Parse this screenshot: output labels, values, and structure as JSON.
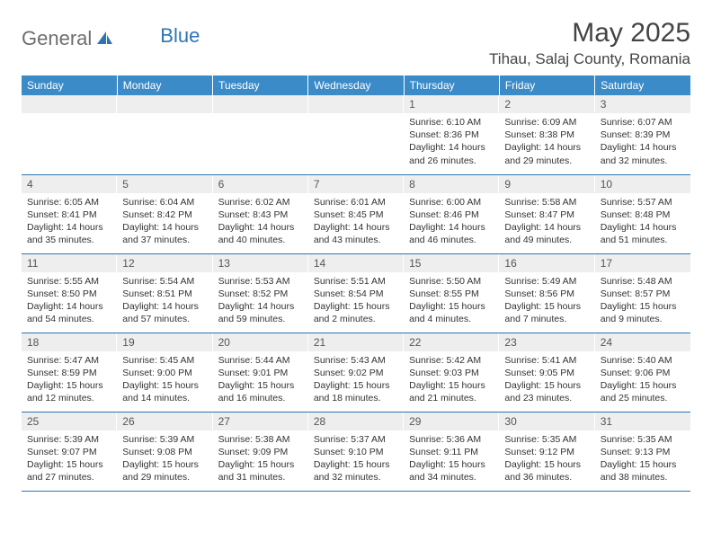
{
  "logo": {
    "general": "General",
    "blue": "Blue"
  },
  "title": "May 2025",
  "location": "Tihau, Salaj County, Romania",
  "colors": {
    "header_bg": "#3b8bc9",
    "header_text": "#ffffff",
    "band_bg": "#eeeeee",
    "rule": "#2e74b5",
    "logo_gray": "#6e6e6e",
    "logo_blue": "#2e74b5",
    "body_text": "#333333"
  },
  "weekdays": [
    "Sunday",
    "Monday",
    "Tuesday",
    "Wednesday",
    "Thursday",
    "Friday",
    "Saturday"
  ],
  "weeks": [
    [
      {
        "day": "",
        "sunrise": "",
        "sunset": "",
        "daylight": ""
      },
      {
        "day": "",
        "sunrise": "",
        "sunset": "",
        "daylight": ""
      },
      {
        "day": "",
        "sunrise": "",
        "sunset": "",
        "daylight": ""
      },
      {
        "day": "",
        "sunrise": "",
        "sunset": "",
        "daylight": ""
      },
      {
        "day": "1",
        "sunrise": "Sunrise: 6:10 AM",
        "sunset": "Sunset: 8:36 PM",
        "daylight": "Daylight: 14 hours and 26 minutes."
      },
      {
        "day": "2",
        "sunrise": "Sunrise: 6:09 AM",
        "sunset": "Sunset: 8:38 PM",
        "daylight": "Daylight: 14 hours and 29 minutes."
      },
      {
        "day": "3",
        "sunrise": "Sunrise: 6:07 AM",
        "sunset": "Sunset: 8:39 PM",
        "daylight": "Daylight: 14 hours and 32 minutes."
      }
    ],
    [
      {
        "day": "4",
        "sunrise": "Sunrise: 6:05 AM",
        "sunset": "Sunset: 8:41 PM",
        "daylight": "Daylight: 14 hours and 35 minutes."
      },
      {
        "day": "5",
        "sunrise": "Sunrise: 6:04 AM",
        "sunset": "Sunset: 8:42 PM",
        "daylight": "Daylight: 14 hours and 37 minutes."
      },
      {
        "day": "6",
        "sunrise": "Sunrise: 6:02 AM",
        "sunset": "Sunset: 8:43 PM",
        "daylight": "Daylight: 14 hours and 40 minutes."
      },
      {
        "day": "7",
        "sunrise": "Sunrise: 6:01 AM",
        "sunset": "Sunset: 8:45 PM",
        "daylight": "Daylight: 14 hours and 43 minutes."
      },
      {
        "day": "8",
        "sunrise": "Sunrise: 6:00 AM",
        "sunset": "Sunset: 8:46 PM",
        "daylight": "Daylight: 14 hours and 46 minutes."
      },
      {
        "day": "9",
        "sunrise": "Sunrise: 5:58 AM",
        "sunset": "Sunset: 8:47 PM",
        "daylight": "Daylight: 14 hours and 49 minutes."
      },
      {
        "day": "10",
        "sunrise": "Sunrise: 5:57 AM",
        "sunset": "Sunset: 8:48 PM",
        "daylight": "Daylight: 14 hours and 51 minutes."
      }
    ],
    [
      {
        "day": "11",
        "sunrise": "Sunrise: 5:55 AM",
        "sunset": "Sunset: 8:50 PM",
        "daylight": "Daylight: 14 hours and 54 minutes."
      },
      {
        "day": "12",
        "sunrise": "Sunrise: 5:54 AM",
        "sunset": "Sunset: 8:51 PM",
        "daylight": "Daylight: 14 hours and 57 minutes."
      },
      {
        "day": "13",
        "sunrise": "Sunrise: 5:53 AM",
        "sunset": "Sunset: 8:52 PM",
        "daylight": "Daylight: 14 hours and 59 minutes."
      },
      {
        "day": "14",
        "sunrise": "Sunrise: 5:51 AM",
        "sunset": "Sunset: 8:54 PM",
        "daylight": "Daylight: 15 hours and 2 minutes."
      },
      {
        "day": "15",
        "sunrise": "Sunrise: 5:50 AM",
        "sunset": "Sunset: 8:55 PM",
        "daylight": "Daylight: 15 hours and 4 minutes."
      },
      {
        "day": "16",
        "sunrise": "Sunrise: 5:49 AM",
        "sunset": "Sunset: 8:56 PM",
        "daylight": "Daylight: 15 hours and 7 minutes."
      },
      {
        "day": "17",
        "sunrise": "Sunrise: 5:48 AM",
        "sunset": "Sunset: 8:57 PM",
        "daylight": "Daylight: 15 hours and 9 minutes."
      }
    ],
    [
      {
        "day": "18",
        "sunrise": "Sunrise: 5:47 AM",
        "sunset": "Sunset: 8:59 PM",
        "daylight": "Daylight: 15 hours and 12 minutes."
      },
      {
        "day": "19",
        "sunrise": "Sunrise: 5:45 AM",
        "sunset": "Sunset: 9:00 PM",
        "daylight": "Daylight: 15 hours and 14 minutes."
      },
      {
        "day": "20",
        "sunrise": "Sunrise: 5:44 AM",
        "sunset": "Sunset: 9:01 PM",
        "daylight": "Daylight: 15 hours and 16 minutes."
      },
      {
        "day": "21",
        "sunrise": "Sunrise: 5:43 AM",
        "sunset": "Sunset: 9:02 PM",
        "daylight": "Daylight: 15 hours and 18 minutes."
      },
      {
        "day": "22",
        "sunrise": "Sunrise: 5:42 AM",
        "sunset": "Sunset: 9:03 PM",
        "daylight": "Daylight: 15 hours and 21 minutes."
      },
      {
        "day": "23",
        "sunrise": "Sunrise: 5:41 AM",
        "sunset": "Sunset: 9:05 PM",
        "daylight": "Daylight: 15 hours and 23 minutes."
      },
      {
        "day": "24",
        "sunrise": "Sunrise: 5:40 AM",
        "sunset": "Sunset: 9:06 PM",
        "daylight": "Daylight: 15 hours and 25 minutes."
      }
    ],
    [
      {
        "day": "25",
        "sunrise": "Sunrise: 5:39 AM",
        "sunset": "Sunset: 9:07 PM",
        "daylight": "Daylight: 15 hours and 27 minutes."
      },
      {
        "day": "26",
        "sunrise": "Sunrise: 5:39 AM",
        "sunset": "Sunset: 9:08 PM",
        "daylight": "Daylight: 15 hours and 29 minutes."
      },
      {
        "day": "27",
        "sunrise": "Sunrise: 5:38 AM",
        "sunset": "Sunset: 9:09 PM",
        "daylight": "Daylight: 15 hours and 31 minutes."
      },
      {
        "day": "28",
        "sunrise": "Sunrise: 5:37 AM",
        "sunset": "Sunset: 9:10 PM",
        "daylight": "Daylight: 15 hours and 32 minutes."
      },
      {
        "day": "29",
        "sunrise": "Sunrise: 5:36 AM",
        "sunset": "Sunset: 9:11 PM",
        "daylight": "Daylight: 15 hours and 34 minutes."
      },
      {
        "day": "30",
        "sunrise": "Sunrise: 5:35 AM",
        "sunset": "Sunset: 9:12 PM",
        "daylight": "Daylight: 15 hours and 36 minutes."
      },
      {
        "day": "31",
        "sunrise": "Sunrise: 5:35 AM",
        "sunset": "Sunset: 9:13 PM",
        "daylight": "Daylight: 15 hours and 38 minutes."
      }
    ]
  ]
}
